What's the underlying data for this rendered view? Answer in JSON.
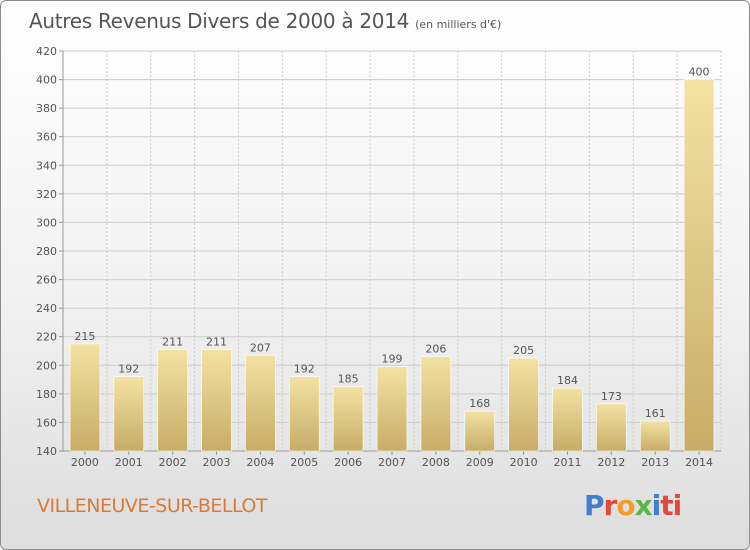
{
  "header": {
    "title": "Autres Revenus Divers de 2000 à 2014",
    "subtitle": "(en milliers d'€)"
  },
  "footer": {
    "commune": "VILLENEUVE-SUR-BELLOT",
    "logo_text": "Proxiti",
    "logo_parts": [
      "P",
      "r",
      "o",
      "x",
      "i",
      "ti"
    ]
  },
  "colors": {
    "bar_light": "#f4e2a3",
    "bar_dark": "#c7ac67",
    "text": "#555555",
    "grid": "#cccccc",
    "commune": "#d87b3a"
  },
  "chart_data": {
    "type": "bar",
    "categories": [
      "2000",
      "2001",
      "2002",
      "2003",
      "2004",
      "2005",
      "2006",
      "2007",
      "2008",
      "2009",
      "2010",
      "2011",
      "2012",
      "2013",
      "2014"
    ],
    "values": [
      215,
      192,
      211,
      211,
      207,
      192,
      185,
      199,
      206,
      168,
      205,
      184,
      173,
      161,
      400
    ],
    "ylim": [
      140,
      420
    ],
    "yticks": [
      140,
      160,
      180,
      200,
      220,
      240,
      260,
      280,
      300,
      320,
      340,
      360,
      380,
      400,
      420
    ],
    "grid": true,
    "data_labels": true
  }
}
